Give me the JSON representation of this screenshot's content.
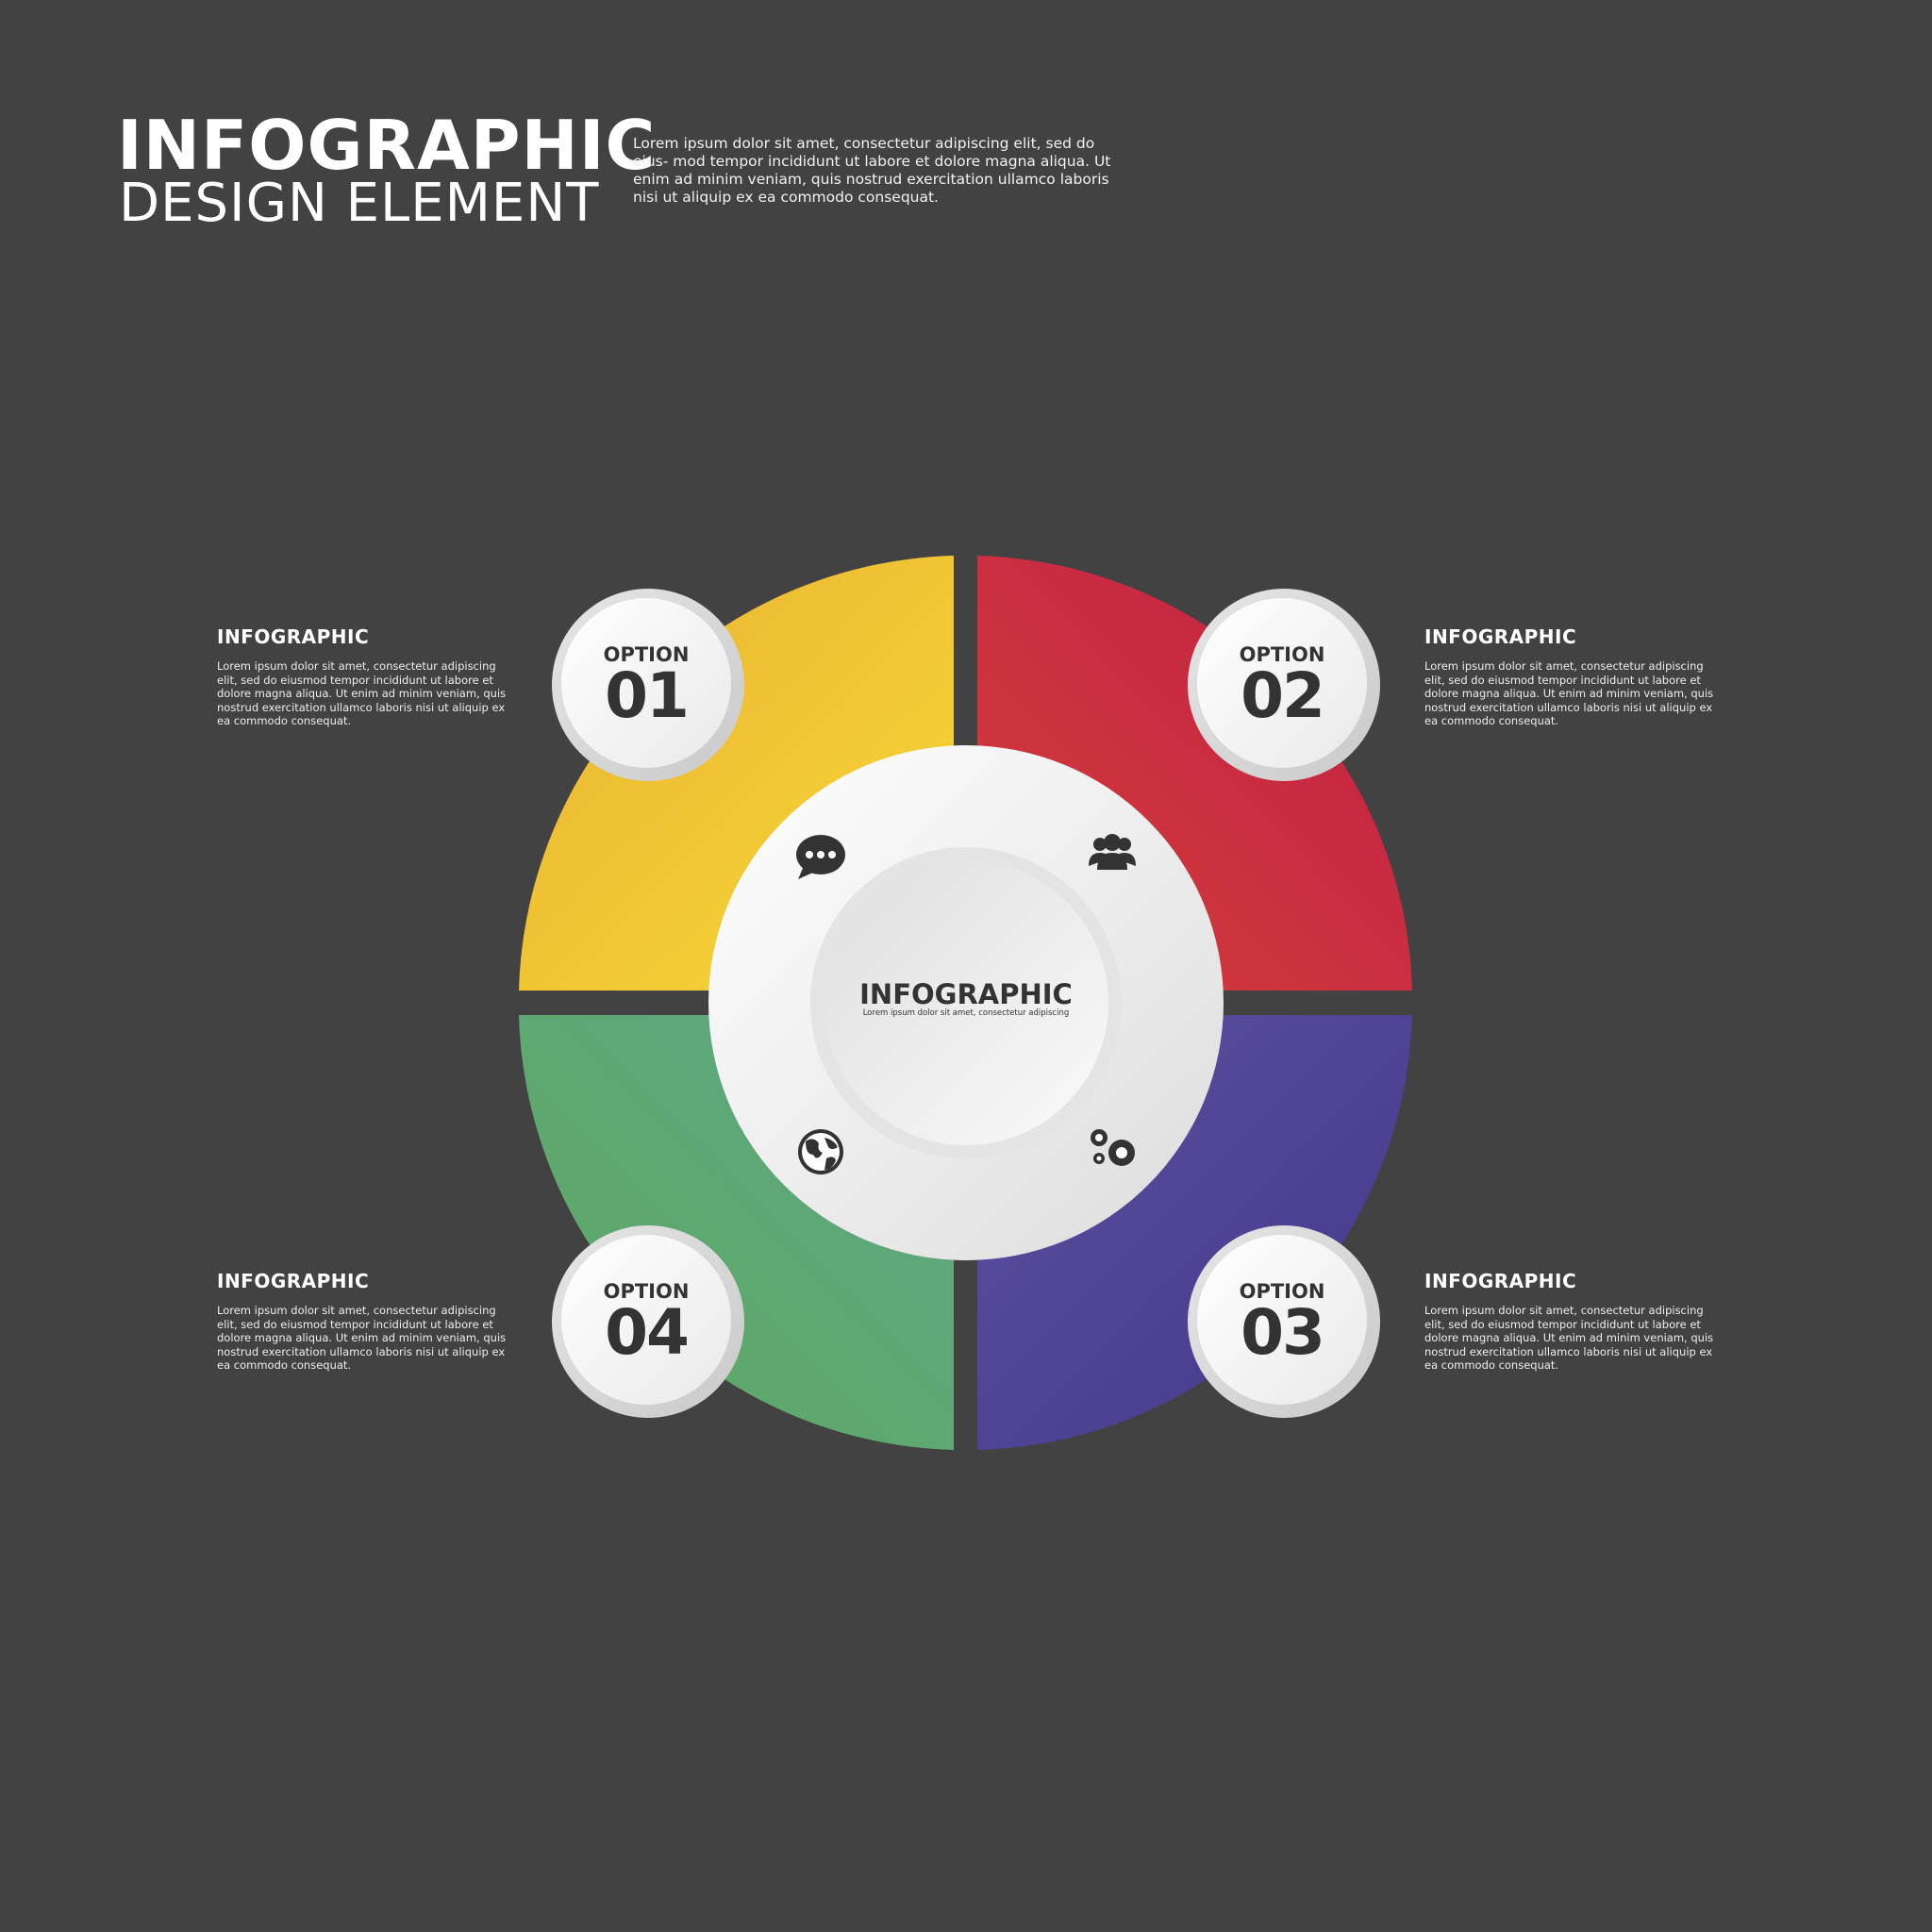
{
  "header": {
    "title_line1": "INFOGRAPHIC",
    "title_line2": "DESIGN ELEMENT",
    "description": "Lorem ipsum dolor sit amet, consectetur adipiscing elit, sed do eius- mod tempor incididunt ut labore et dolore magna aliqua. Ut enim ad minim veniam, quis nostrud exercitation ullamco laboris nisi ut aliquip ex ea commodo consequat."
  },
  "center": {
    "title": "INFOGRAPHIC",
    "subtitle": "Lorem ipsum dolor sit amet, consectetur adipiscing"
  },
  "options": [
    {
      "label": "OPTION",
      "number": "01",
      "color": "#f2c530",
      "icon": "chat-bubble-icon",
      "heading": "INFOGRAPHIC",
      "text": "Lorem ipsum dolor sit amet, consectetur adipiscing elit, sed do eiusmod tempor incididunt ut labore et dolore magna aliqua. Ut enim ad minim veniam, quis nostrud exercitation ullamco laboris nisi ut aliquip ex ea commodo consequat."
    },
    {
      "label": "OPTION",
      "number": "02",
      "color": "#c8243f",
      "icon": "users-icon",
      "heading": "INFOGRAPHIC",
      "text": "Lorem ipsum dolor sit amet, consectetur adipiscing elit, sed do eiusmod tempor incididunt ut labore et dolore magna aliqua. Ut enim ad minim veniam, quis nostrud exercitation ullamco laboris nisi ut aliquip ex ea commodo consequat."
    },
    {
      "label": "OPTION",
      "number": "03",
      "color": "#4e4291",
      "icon": "gears-icon",
      "heading": "INFOGRAPHIC",
      "text": "Lorem ipsum dolor sit amet, consectetur adipiscing elit, sed do eiusmod tempor incididunt ut labore et dolore magna aliqua. Ut enim ad minim veniam, quis nostrud exercitation ullamco laboris nisi ut aliquip ex ea commodo consequat."
    },
    {
      "label": "OPTION",
      "number": "04",
      "color": "#5fa876",
      "icon": "globe-icon",
      "heading": "INFOGRAPHIC",
      "text": "Lorem ipsum dolor sit amet, consectetur adipiscing elit, sed do eiusmod tempor incididunt ut labore et dolore magna aliqua. Ut enim ad minim veniam, quis nostrud exercitation ullamco laboris nisi ut aliquip ex ea commodo consequat."
    }
  ]
}
